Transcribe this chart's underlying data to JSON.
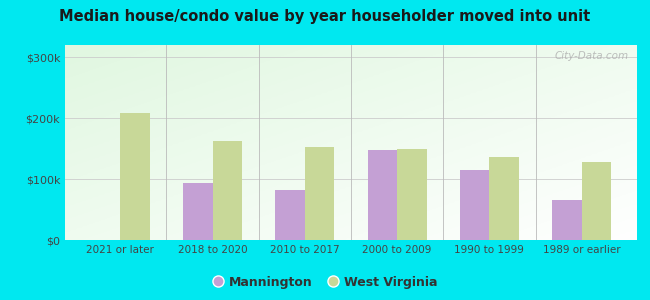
{
  "title": "Median house/condo value by year householder moved into unit",
  "categories": [
    "2021 or later",
    "2018 to 2020",
    "2010 to 2017",
    "2000 to 2009",
    "1990 to 1999",
    "1989 or earlier"
  ],
  "mannington": [
    0,
    93000,
    82000,
    148000,
    115000,
    65000
  ],
  "west_virginia": [
    208000,
    163000,
    152000,
    150000,
    137000,
    128000
  ],
  "mannington_color": "#c4a0d4",
  "west_virginia_color": "#c8d898",
  "yticks": [
    0,
    100000,
    200000,
    300000
  ],
  "ytick_labels": [
    "$0",
    "$100k",
    "$200k",
    "$300k"
  ],
  "ylim": [
    0,
    320000
  ],
  "bg_outer": "#00e8f0",
  "bar_width": 0.32,
  "legend_mannington": "Mannington",
  "legend_wv": "West Virginia",
  "watermark": "City-Data.com"
}
